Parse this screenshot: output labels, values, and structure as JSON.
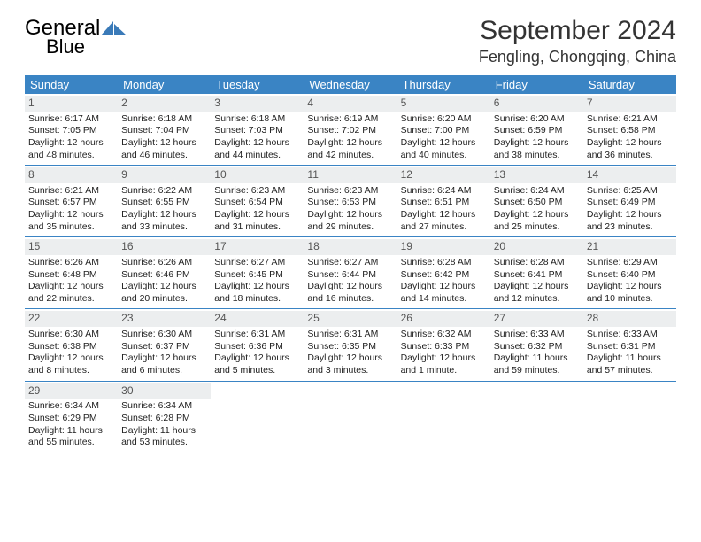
{
  "brand": {
    "word1": "General",
    "word2": "Blue"
  },
  "title": "September 2024",
  "location": "Fengling, Chongqing, China",
  "colors": {
    "header_bg": "#3a84c4",
    "daynum_bg": "#eceeef"
  },
  "day_headers": [
    "Sunday",
    "Monday",
    "Tuesday",
    "Wednesday",
    "Thursday",
    "Friday",
    "Saturday"
  ],
  "weeks": [
    [
      {
        "n": "1",
        "sr": "6:17 AM",
        "ss": "7:05 PM",
        "dl": "12 hours and 48 minutes."
      },
      {
        "n": "2",
        "sr": "6:18 AM",
        "ss": "7:04 PM",
        "dl": "12 hours and 46 minutes."
      },
      {
        "n": "3",
        "sr": "6:18 AM",
        "ss": "7:03 PM",
        "dl": "12 hours and 44 minutes."
      },
      {
        "n": "4",
        "sr": "6:19 AM",
        "ss": "7:02 PM",
        "dl": "12 hours and 42 minutes."
      },
      {
        "n": "5",
        "sr": "6:20 AM",
        "ss": "7:00 PM",
        "dl": "12 hours and 40 minutes."
      },
      {
        "n": "6",
        "sr": "6:20 AM",
        "ss": "6:59 PM",
        "dl": "12 hours and 38 minutes."
      },
      {
        "n": "7",
        "sr": "6:21 AM",
        "ss": "6:58 PM",
        "dl": "12 hours and 36 minutes."
      }
    ],
    [
      {
        "n": "8",
        "sr": "6:21 AM",
        "ss": "6:57 PM",
        "dl": "12 hours and 35 minutes."
      },
      {
        "n": "9",
        "sr": "6:22 AM",
        "ss": "6:55 PM",
        "dl": "12 hours and 33 minutes."
      },
      {
        "n": "10",
        "sr": "6:23 AM",
        "ss": "6:54 PM",
        "dl": "12 hours and 31 minutes."
      },
      {
        "n": "11",
        "sr": "6:23 AM",
        "ss": "6:53 PM",
        "dl": "12 hours and 29 minutes."
      },
      {
        "n": "12",
        "sr": "6:24 AM",
        "ss": "6:51 PM",
        "dl": "12 hours and 27 minutes."
      },
      {
        "n": "13",
        "sr": "6:24 AM",
        "ss": "6:50 PM",
        "dl": "12 hours and 25 minutes."
      },
      {
        "n": "14",
        "sr": "6:25 AM",
        "ss": "6:49 PM",
        "dl": "12 hours and 23 minutes."
      }
    ],
    [
      {
        "n": "15",
        "sr": "6:26 AM",
        "ss": "6:48 PM",
        "dl": "12 hours and 22 minutes."
      },
      {
        "n": "16",
        "sr": "6:26 AM",
        "ss": "6:46 PM",
        "dl": "12 hours and 20 minutes."
      },
      {
        "n": "17",
        "sr": "6:27 AM",
        "ss": "6:45 PM",
        "dl": "12 hours and 18 minutes."
      },
      {
        "n": "18",
        "sr": "6:27 AM",
        "ss": "6:44 PM",
        "dl": "12 hours and 16 minutes."
      },
      {
        "n": "19",
        "sr": "6:28 AM",
        "ss": "6:42 PM",
        "dl": "12 hours and 14 minutes."
      },
      {
        "n": "20",
        "sr": "6:28 AM",
        "ss": "6:41 PM",
        "dl": "12 hours and 12 minutes."
      },
      {
        "n": "21",
        "sr": "6:29 AM",
        "ss": "6:40 PM",
        "dl": "12 hours and 10 minutes."
      }
    ],
    [
      {
        "n": "22",
        "sr": "6:30 AM",
        "ss": "6:38 PM",
        "dl": "12 hours and 8 minutes."
      },
      {
        "n": "23",
        "sr": "6:30 AM",
        "ss": "6:37 PM",
        "dl": "12 hours and 6 minutes."
      },
      {
        "n": "24",
        "sr": "6:31 AM",
        "ss": "6:36 PM",
        "dl": "12 hours and 5 minutes."
      },
      {
        "n": "25",
        "sr": "6:31 AM",
        "ss": "6:35 PM",
        "dl": "12 hours and 3 minutes."
      },
      {
        "n": "26",
        "sr": "6:32 AM",
        "ss": "6:33 PM",
        "dl": "12 hours and 1 minute."
      },
      {
        "n": "27",
        "sr": "6:33 AM",
        "ss": "6:32 PM",
        "dl": "11 hours and 59 minutes."
      },
      {
        "n": "28",
        "sr": "6:33 AM",
        "ss": "6:31 PM",
        "dl": "11 hours and 57 minutes."
      }
    ],
    [
      {
        "n": "29",
        "sr": "6:34 AM",
        "ss": "6:29 PM",
        "dl": "11 hours and 55 minutes."
      },
      {
        "n": "30",
        "sr": "6:34 AM",
        "ss": "6:28 PM",
        "dl": "11 hours and 53 minutes."
      },
      null,
      null,
      null,
      null,
      null
    ]
  ],
  "labels": {
    "sunrise": "Sunrise:",
    "sunset": "Sunset:",
    "daylight": "Daylight:"
  }
}
